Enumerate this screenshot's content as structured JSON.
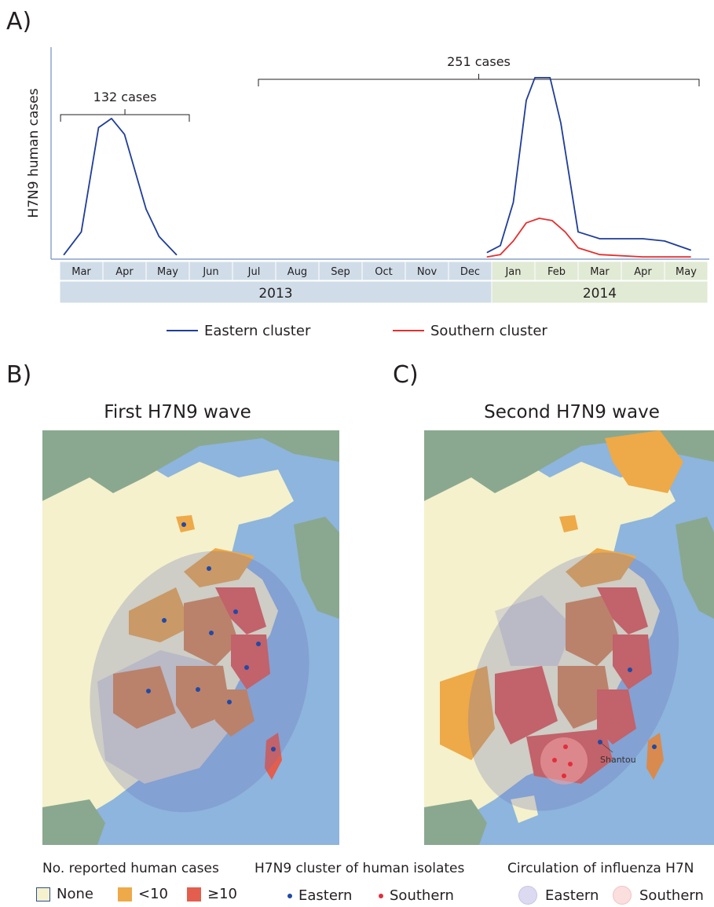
{
  "panels": {
    "a_letter": "A)",
    "b_letter": "B)",
    "c_letter": "C)"
  },
  "chart_data": {
    "type": "line",
    "ylabel": "H7N9 human cases",
    "x": [
      "Mar",
      "Apr",
      "May",
      "Jun",
      "Jul",
      "Aug",
      "Sep",
      "Oct",
      "Nov",
      "Dec",
      "Jan",
      "Feb",
      "Mar",
      "Apr",
      "May"
    ],
    "years": [
      {
        "label": "2013",
        "color": "#d0dde9"
      },
      {
        "label": "2014",
        "color": "#e1ead5"
      }
    ],
    "brackets": [
      {
        "label": "132 cases"
      },
      {
        "label": "251 cases"
      }
    ],
    "series": [
      {
        "name": "Eastern  cluster",
        "color": "#1f3d99",
        "points": [
          [
            0.1,
            2
          ],
          [
            0.5,
            12
          ],
          [
            0.9,
            58
          ],
          [
            1.2,
            62
          ],
          [
            1.5,
            55
          ],
          [
            2.0,
            22
          ],
          [
            2.3,
            10
          ],
          [
            2.7,
            2
          ],
          [
            7.2,
            3
          ],
          [
            9.9,
            3
          ],
          [
            10.2,
            6
          ],
          [
            10.5,
            25
          ],
          [
            10.8,
            70
          ],
          [
            11.0,
            80
          ],
          [
            11.35,
            80
          ],
          [
            11.6,
            60
          ],
          [
            12.0,
            12
          ],
          [
            12.5,
            9
          ],
          [
            13.5,
            9
          ],
          [
            14.0,
            8
          ],
          [
            14.6,
            4
          ]
        ]
      },
      {
        "name": "Southern cluster",
        "color": "#e62e2e",
        "points": [
          [
            4.2,
            1
          ],
          [
            9.9,
            1
          ],
          [
            10.2,
            2
          ],
          [
            10.5,
            8
          ],
          [
            10.8,
            16
          ],
          [
            11.1,
            18
          ],
          [
            11.4,
            17
          ],
          [
            11.7,
            12
          ],
          [
            12.0,
            5
          ],
          [
            12.5,
            2
          ],
          [
            13.5,
            1
          ],
          [
            14.6,
            1
          ]
        ]
      }
    ]
  },
  "maps": {
    "b_title": "First H7N9 wave",
    "c_title": "Second H7N9 wave",
    "c_annotation": "Shantou"
  },
  "legend": {
    "reported_title": "No. reported human cases",
    "none": "None",
    "lt10": "<10",
    "ge10": "≥10",
    "cluster_title": "H7N9 cluster of human isolates",
    "eastern": "Eastern",
    "southern": "Southern",
    "circulation_title": "Circulation of influenza H7N",
    "circ_eastern": "Eastern",
    "circ_southern": "Southern",
    "colors": {
      "none": "#f4f1cc",
      "lt10": "#eea948",
      "ge10": "#e35e4d",
      "eastern_dot": "#1f4aa8",
      "southern_dot": "#e32e3b"
    }
  }
}
